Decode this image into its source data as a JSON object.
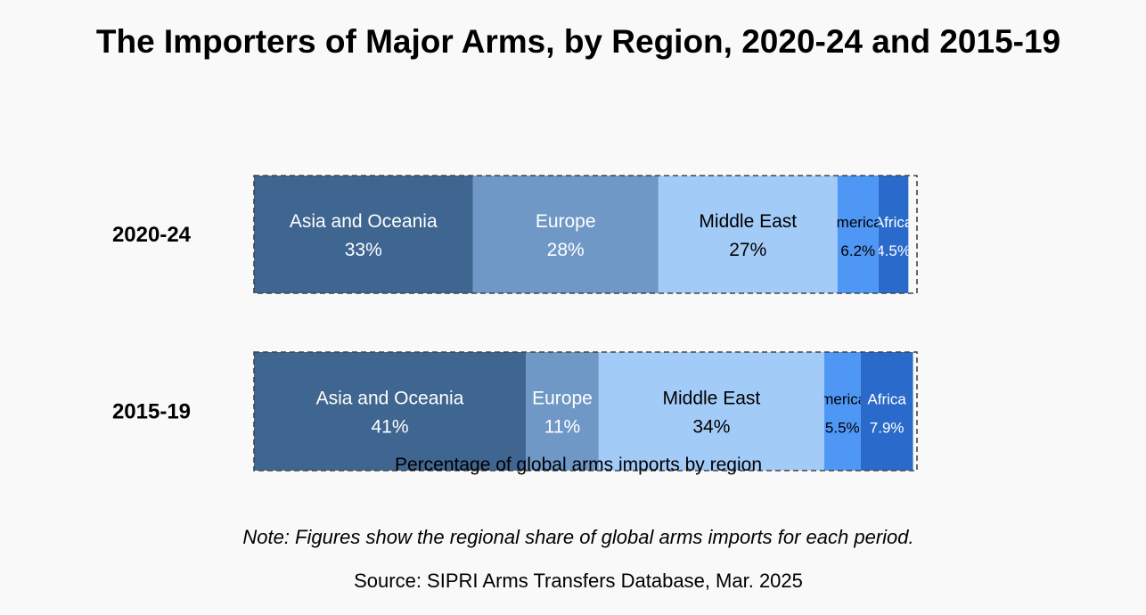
{
  "chart_data": {
    "type": "bar",
    "orientation": "horizontal",
    "stacked": true,
    "title": "The Importers of Major Arms, by Region, 2020-24 and 2015-19",
    "xlabel": "Percentage of global arms imports by region",
    "ylabel": "",
    "categories": [
      "2020-24",
      "2015-19"
    ],
    "xlim": [
      0,
      100
    ],
    "grid": false,
    "series": [
      {
        "name": "Asia and Oceania",
        "values": [
          33,
          41
        ],
        "labels": [
          "33%",
          "41%"
        ],
        "color": "#3f6591",
        "text_color": "#ffffff"
      },
      {
        "name": "Europe",
        "values": [
          28,
          11
        ],
        "labels": [
          "28%",
          "11%"
        ],
        "color": "#6f98c6",
        "text_color": "#ffffff"
      },
      {
        "name": "Middle East",
        "values": [
          27,
          34
        ],
        "labels": [
          "27%",
          "34%"
        ],
        "color": "#a3cbf8",
        "text_color": "#000000"
      },
      {
        "name": "Americas",
        "values": [
          6.2,
          5.5
        ],
        "labels": [
          "6.2%",
          "5.5%"
        ],
        "color": "#4f97f5",
        "text_color": "#000000"
      },
      {
        "name": "Africa",
        "values": [
          4.5,
          7.9
        ],
        "labels": [
          "4.5%",
          "7.9%"
        ],
        "color": "#2a6acb",
        "text_color": "#ffffff"
      }
    ]
  },
  "note": "Note: Figures show the regional share of global arms imports for each period.",
  "source": "Source: SIPRI Arms Transfers Database, Mar. 2025"
}
